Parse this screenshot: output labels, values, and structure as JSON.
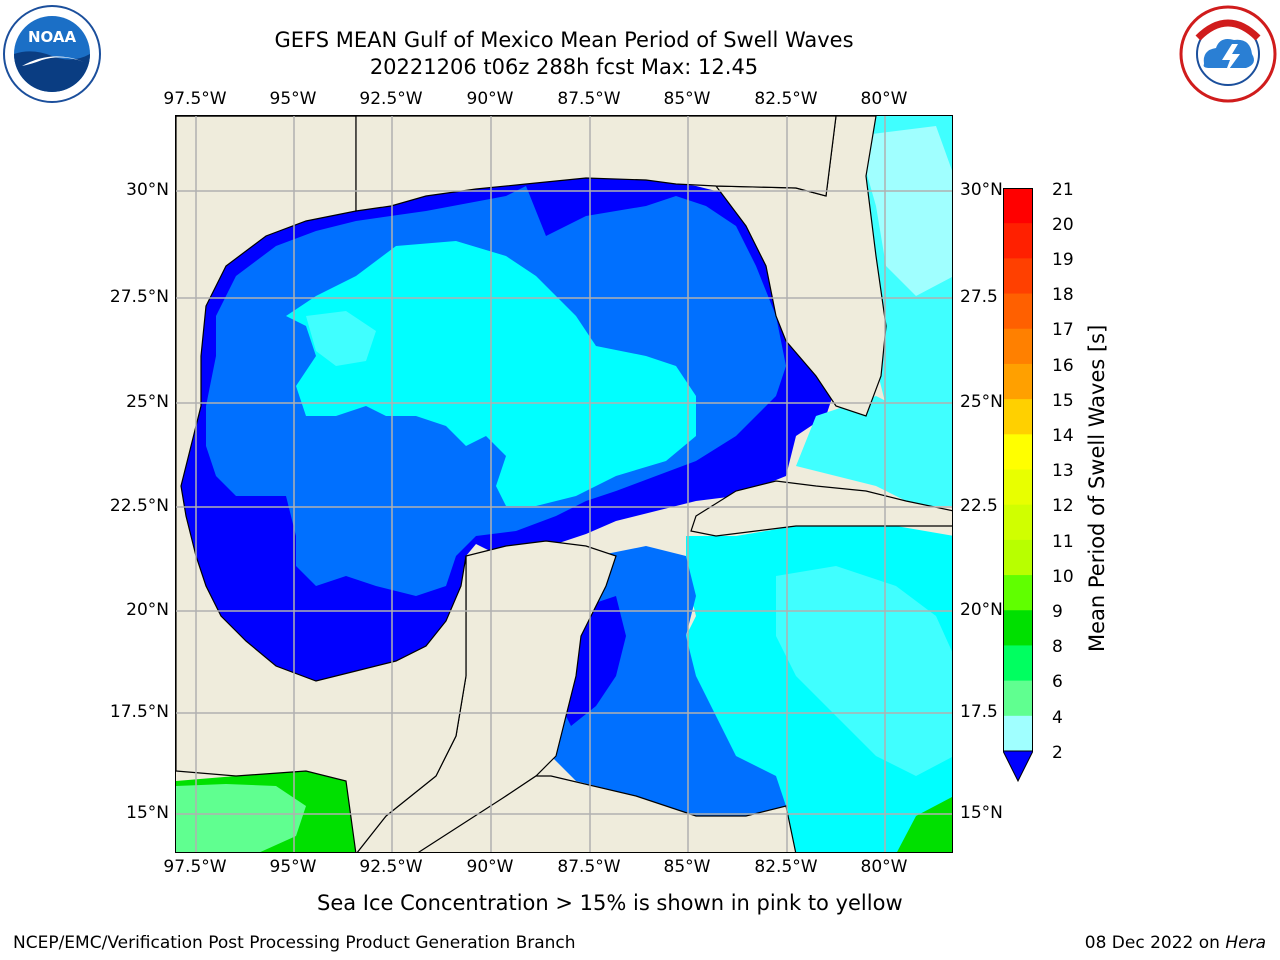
{
  "title": {
    "line1": "GEFS MEAN Gulf of Mexico Mean Period of Swell Waves",
    "line2": "20221206 t06z 288h fcst   Max: 12.45"
  },
  "map": {
    "lon_labels": [
      "97.5°W",
      "95°W",
      "92.5°W",
      "90°W",
      "87.5°W",
      "85°W",
      "82.5°W",
      "80°W"
    ],
    "lat_labels_left": [
      "30°N",
      "27.5°N",
      "25°N",
      "22.5°N",
      "20°N",
      "17.5°N",
      "15°N"
    ],
    "lat_labels_right": [
      "30°N",
      "27.5",
      "25°N",
      "22.5",
      "20°N",
      "17.5",
      "15°N"
    ],
    "land_color": "#efecdc",
    "gridline_color": "#b0b0b0"
  },
  "colorbar": {
    "label": "Mean Period of Swell Waves [s]",
    "ticks": [
      "21",
      "20",
      "19",
      "18",
      "17",
      "16",
      "15",
      "14",
      "13",
      "12",
      "11",
      "10",
      "9",
      "8",
      "6",
      "4",
      "2"
    ],
    "colors": [
      "#ff0000",
      "#ff2000",
      "#ff4000",
      "#ff6000",
      "#ff8000",
      "#ffa000",
      "#ffd000",
      "#ffff00",
      "#e8ff00",
      "#d0ff00",
      "#b8ff00",
      "#60ff00",
      "#00e000",
      "#00ff60",
      "#60ff90",
      "#a0ffff",
      "#40ffff",
      "#00ffff",
      "#0070ff",
      "#0000ff"
    ],
    "extend_color": "#0000ff"
  },
  "caption": "Sea Ice Concentration > 15% is shown in pink to yellow",
  "footer": {
    "left": "NCEP/EMC/Verification Post Processing Product Generation Branch",
    "date": "08 Dec 2022 on ",
    "machine": "Hera"
  },
  "logos": {
    "left": "NOAA",
    "right": "NATIONAL WEATHER SERVICE"
  }
}
